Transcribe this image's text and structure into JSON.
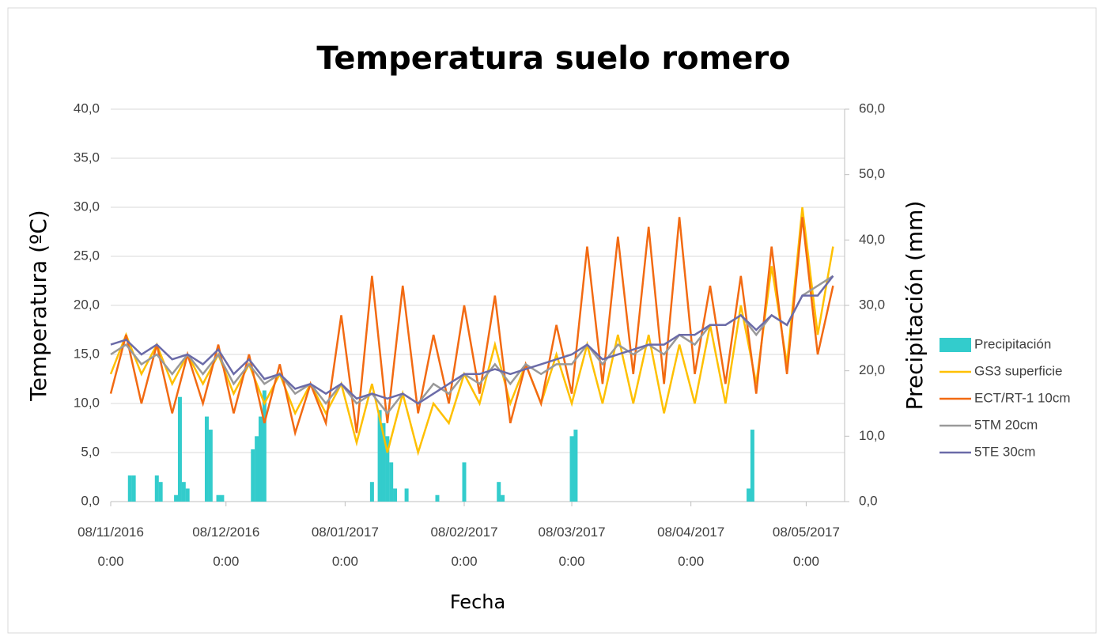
{
  "chart_data": {
    "type": "line",
    "title": "Temperatura suelo romero",
    "x_label": "Fecha",
    "y_label": "Temperatura  (ºC)",
    "y2_label": "Precipitación (mm)",
    "xlim": [
      "2016-11-08",
      "2017-05-18"
    ],
    "xticks": [
      {
        "value": "2016-11-08",
        "label": "08/11/2016 0:00"
      },
      {
        "value": "2016-12-08",
        "label": "08/12/2016 0:00"
      },
      {
        "value": "2017-01-08",
        "label": "08/01/2017 0:00"
      },
      {
        "value": "2017-02-08",
        "label": "08/02/2017 0:00"
      },
      {
        "value": "2017-03-08",
        "label": "08/03/2017 0:00"
      },
      {
        "value": "2017-04-08",
        "label": "08/04/2017 0:00"
      },
      {
        "value": "2017-05-08",
        "label": "08/05/2017 0:00"
      }
    ],
    "ylim": [
      0,
      40
    ],
    "yticks": [
      {
        "value": 0,
        "label": "0,0"
      },
      {
        "value": 5,
        "label": "5,0"
      },
      {
        "value": 10,
        "label": "10,0"
      },
      {
        "value": 15,
        "label": "15,0"
      },
      {
        "value": 20,
        "label": "20,0"
      },
      {
        "value": 25,
        "label": "25,0"
      },
      {
        "value": 30,
        "label": "30,0"
      },
      {
        "value": 35,
        "label": "35,0"
      },
      {
        "value": 40,
        "label": "40,0"
      }
    ],
    "y2lim": [
      0,
      60
    ],
    "y2ticks": [
      {
        "value": 0,
        "label": "0,0"
      },
      {
        "value": 10,
        "label": "10,0"
      },
      {
        "value": 20,
        "label": "20,0"
      },
      {
        "value": 30,
        "label": "30,0"
      },
      {
        "value": 40,
        "label": "40,0"
      },
      {
        "value": 50,
        "label": "50,0"
      },
      {
        "value": 60,
        "label": "60,0"
      }
    ],
    "grid": true,
    "legend": "right",
    "x": [
      "2016-11-08",
      "2016-11-12",
      "2016-11-16",
      "2016-11-20",
      "2016-11-24",
      "2016-11-28",
      "2016-12-02",
      "2016-12-06",
      "2016-12-10",
      "2016-12-14",
      "2016-12-18",
      "2016-12-22",
      "2016-12-26",
      "2016-12-30",
      "2017-01-03",
      "2017-01-07",
      "2017-01-11",
      "2017-01-15",
      "2017-01-19",
      "2017-01-23",
      "2017-01-27",
      "2017-01-31",
      "2017-02-04",
      "2017-02-08",
      "2017-02-12",
      "2017-02-16",
      "2017-02-20",
      "2017-02-24",
      "2017-02-28",
      "2017-03-04",
      "2017-03-08",
      "2017-03-12",
      "2017-03-16",
      "2017-03-20",
      "2017-03-24",
      "2017-03-28",
      "2017-04-01",
      "2017-04-05",
      "2017-04-09",
      "2017-04-13",
      "2017-04-17",
      "2017-04-21",
      "2017-04-25",
      "2017-04-29",
      "2017-05-03",
      "2017-05-07",
      "2017-05-11",
      "2017-05-15"
    ],
    "series": [
      {
        "name": "Precipitación",
        "type": "bar",
        "axis": "y2",
        "color": "#33cccc",
        "x": [
          "2016-11-13",
          "2016-11-14",
          "2016-11-20",
          "2016-11-21",
          "2016-11-25",
          "2016-11-26",
          "2016-11-27",
          "2016-11-28",
          "2016-12-03",
          "2016-12-04",
          "2016-12-06",
          "2016-12-07",
          "2016-12-15",
          "2016-12-16",
          "2016-12-17",
          "2016-12-18",
          "2017-01-15",
          "2017-01-17",
          "2017-01-18",
          "2017-01-19",
          "2017-01-20",
          "2017-01-21",
          "2017-01-24",
          "2017-02-01",
          "2017-02-08",
          "2017-02-17",
          "2017-02-18",
          "2017-03-08",
          "2017-03-09",
          "2017-04-23",
          "2017-04-24"
        ],
        "values": [
          4,
          4,
          4,
          3,
          1,
          16,
          3,
          2,
          13,
          11,
          1,
          1,
          8,
          10,
          13,
          17,
          3,
          14,
          12,
          10,
          6,
          2,
          2,
          1,
          6,
          3,
          1,
          10,
          11,
          2,
          11
        ]
      },
      {
        "name": "GS3 superficie",
        "color": "#ffc000",
        "values": [
          13,
          17,
          13,
          16,
          12,
          15,
          12,
          15,
          11,
          14,
          10,
          13,
          9,
          12,
          9,
          12,
          6,
          12,
          5,
          11,
          5,
          10,
          8,
          13,
          10,
          16,
          10,
          14,
          10,
          15,
          10,
          16,
          10,
          17,
          10,
          17,
          9,
          16,
          10,
          18,
          10,
          20,
          12,
          24,
          14,
          30,
          17,
          26
        ]
      },
      {
        "name": "ECT/RT-1 10cm",
        "color": "#f26a12",
        "values": [
          11,
          17,
          10,
          16,
          9,
          15,
          10,
          16,
          9,
          15,
          8,
          14,
          7,
          12,
          8,
          19,
          7,
          23,
          8,
          22,
          9,
          17,
          10,
          20,
          11,
          21,
          8,
          14,
          10,
          18,
          11,
          26,
          12,
          27,
          13,
          28,
          12,
          29,
          13,
          22,
          12,
          23,
          11,
          26,
          13,
          29,
          15,
          22
        ]
      },
      {
        "name": "5TM 20cm",
        "color": "#999999",
        "values": [
          15,
          16,
          14,
          15,
          13,
          15,
          13,
          15,
          12,
          14,
          12,
          13,
          11,
          12,
          10,
          12,
          10,
          11,
          9,
          11,
          10,
          12,
          11,
          13,
          12,
          14,
          12,
          14,
          13,
          14,
          14,
          16,
          14,
          16,
          15,
          16,
          15,
          17,
          16,
          18,
          18,
          19,
          17,
          19,
          18,
          21,
          22,
          23
        ]
      },
      {
        "name": "5TE 30cm",
        "color": "#6b6ba8",
        "values": [
          16,
          16.5,
          15,
          16,
          14.5,
          15,
          14,
          15.5,
          13,
          14.5,
          12.5,
          13,
          11.5,
          12,
          11,
          12,
          10.5,
          11,
          10.5,
          11,
          10,
          11,
          12,
          13,
          13,
          13.5,
          13,
          13.5,
          14,
          14.5,
          15,
          16,
          14.5,
          15,
          15.5,
          16,
          16,
          17,
          17,
          18,
          18,
          19,
          17.5,
          19,
          18,
          21,
          21,
          23
        ]
      }
    ]
  }
}
